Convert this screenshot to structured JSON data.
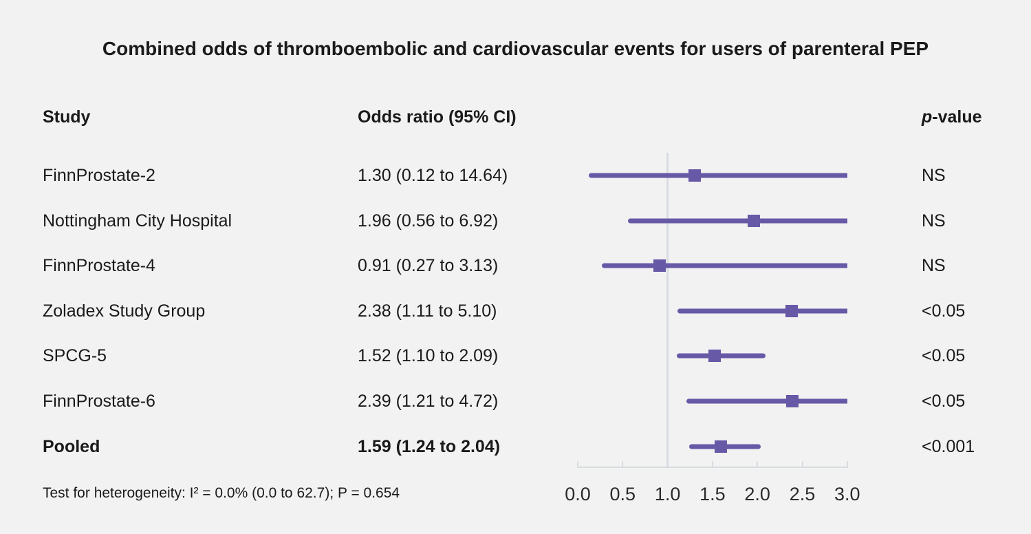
{
  "title": "Combined odds of thromboembolic and cardiovascular events for users of parenteral PEP",
  "headers": {
    "study": "Study",
    "odds_ratio": "Odds ratio (95% CI)",
    "p_italic": "p",
    "p_rest": "-value"
  },
  "chart_data": {
    "type": "forest",
    "title": "Combined odds of thromboembolic and cardiovascular events for users of parenteral PEP",
    "xlim": [
      0.0,
      3.0
    ],
    "x_tick_labels": [
      "0.0",
      "0.5",
      "1.0",
      "1.5",
      "2.0",
      "2.5",
      "3.0"
    ],
    "reference_line": 1.0,
    "grid": false,
    "rows": [
      {
        "study": "FinnProstate-2",
        "or_text": "1.30 (0.12 to 14.64)",
        "est": 1.3,
        "lo": 0.12,
        "hi": 14.64,
        "p": "NS",
        "bold": false
      },
      {
        "study": "Nottingham City Hospital",
        "or_text": "1.96 (0.56 to 6.92)",
        "est": 1.96,
        "lo": 0.56,
        "hi": 6.92,
        "p": "NS",
        "bold": false
      },
      {
        "study": "FinnProstate-4",
        "or_text": "0.91 (0.27 to 3.13)",
        "est": 0.91,
        "lo": 0.27,
        "hi": 3.13,
        "p": "NS",
        "bold": false
      },
      {
        "study": "Zoladex Study Group",
        "or_text": "2.38 (1.11 to 5.10)",
        "est": 2.38,
        "lo": 1.11,
        "hi": 5.1,
        "p": "<0.05",
        "bold": false
      },
      {
        "study": "SPCG-5",
        "or_text": "1.52 (1.10 to 2.09)",
        "est": 1.52,
        "lo": 1.1,
        "hi": 2.09,
        "p": "<0.05",
        "bold": false
      },
      {
        "study": "FinnProstate-6",
        "or_text": "2.39 (1.21 to 4.72)",
        "est": 2.39,
        "lo": 1.21,
        "hi": 4.72,
        "p": "<0.05",
        "bold": false
      },
      {
        "study": "Pooled",
        "or_text": "1.59 (1.24 to 2.04)",
        "est": 1.59,
        "lo": 1.24,
        "hi": 2.04,
        "p": "<0.001",
        "bold": true
      }
    ]
  },
  "footer": "Test for heterogeneity: I² = 0.0% (0.0 to 62.7); P = 0.654",
  "colors": {
    "accent_purple": "#6859a7",
    "axis_gray": "#d8dce1",
    "background": "#f2f2f2",
    "text": "#1a1a1a"
  }
}
